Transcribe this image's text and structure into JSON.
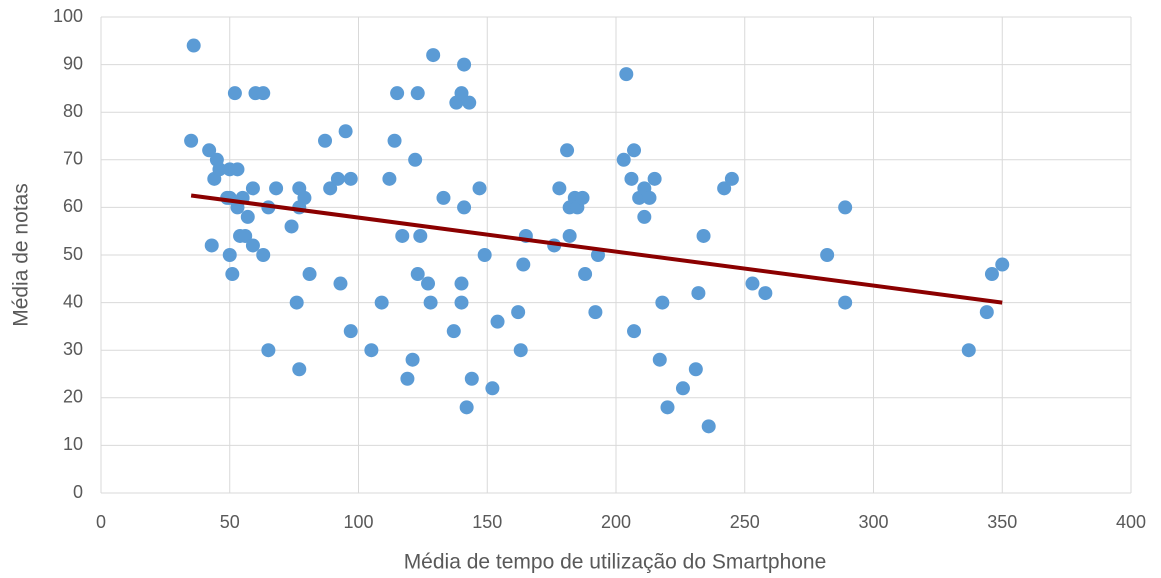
{
  "chart_data": {
    "type": "scatter",
    "x_label": "Média de tempo de utilização do Smartphone",
    "y_label": "Média de notas",
    "color": "#5b9bd5",
    "xlim": [
      0,
      400
    ],
    "xticks": [
      0,
      50,
      100,
      150,
      200,
      250,
      300,
      350,
      400
    ],
    "ylim": [
      0,
      100
    ],
    "yticks": [
      0,
      10,
      20,
      30,
      40,
      50,
      60,
      70,
      80,
      90,
      100
    ],
    "grid": true,
    "x": [
      36,
      35,
      42,
      44,
      45,
      46,
      43,
      49,
      50,
      50,
      50,
      51,
      52,
      53,
      53,
      54,
      55,
      56,
      57,
      59,
      59,
      60,
      63,
      63,
      65,
      65,
      68,
      74,
      76,
      77,
      77,
      77,
      79,
      81,
      87,
      89,
      92,
      93,
      95,
      97,
      97,
      105,
      109,
      112,
      114,
      115,
      117,
      119,
      121,
      122,
      123,
      123,
      124,
      127,
      128,
      129,
      133,
      137,
      138,
      140,
      140,
      140,
      141,
      141,
      142,
      143,
      144,
      147,
      149,
      152,
      154,
      162,
      163,
      164,
      165,
      176,
      178,
      181,
      182,
      182,
      184,
      185,
      187,
      188,
      192,
      193,
      203,
      204,
      206,
      207,
      207,
      209,
      211,
      211,
      213,
      215,
      217,
      218,
      220,
      226,
      231,
      232,
      234,
      236,
      242,
      245,
      253,
      258,
      282,
      289,
      289,
      337,
      344,
      346,
      350
    ],
    "values": [
      94,
      74,
      72,
      66,
      70,
      68,
      52,
      62,
      68,
      62,
      50,
      46,
      84,
      68,
      60,
      54,
      62,
      54,
      58,
      64,
      52,
      84,
      84,
      50,
      60,
      30,
      64,
      56,
      40,
      64,
      26,
      60,
      62,
      46,
      74,
      64,
      66,
      44,
      76,
      66,
      34,
      30,
      40,
      66,
      74,
      84,
      54,
      24,
      28,
      70,
      84,
      46,
      54,
      44,
      40,
      92,
      62,
      34,
      82,
      84,
      44,
      40,
      90,
      60,
      18,
      82,
      24,
      64,
      50,
      22,
      36,
      38,
      30,
      48,
      54,
      52,
      64,
      72,
      60,
      54,
      62,
      60,
      62,
      46,
      38,
      50,
      70,
      88,
      66,
      72,
      34,
      62,
      64,
      58,
      62,
      66,
      28,
      40,
      18,
      22,
      26,
      42,
      54,
      14,
      64,
      66,
      44,
      42,
      50,
      60,
      40,
      30,
      38,
      46,
      48
    ],
    "trendline": {
      "color": "#8b0000",
      "x": [
        35,
        350
      ],
      "y": [
        62.5,
        40
      ]
    }
  }
}
